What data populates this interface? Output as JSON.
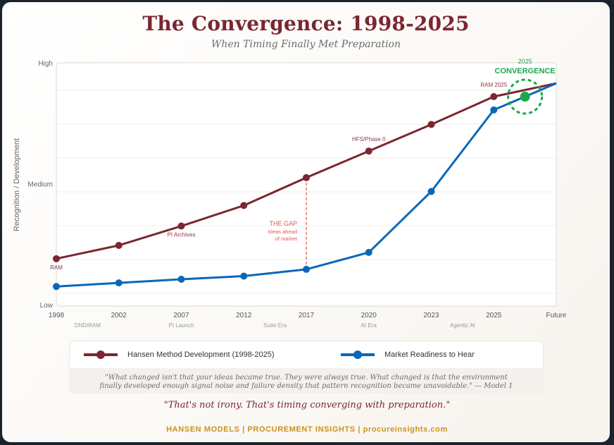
{
  "header": {
    "title": "The Convergence: 1998-2025",
    "subtitle": "When Timing Finally Met Preparation"
  },
  "colors": {
    "hansen": "#7b2630",
    "market": "#0a67b8",
    "convergence": "#1aa84b",
    "gap": "#e05a4e",
    "footer": "#c9921e"
  },
  "chart_data": {
    "type": "line",
    "title": "The Convergence: 1998-2025",
    "subtitle": "When Timing Finally Met Preparation",
    "xlabel": "",
    "ylabel": "Recognition / Development",
    "x": [
      "1998",
      "2002",
      "2007",
      "2012",
      "2017",
      "2020",
      "2023",
      "2025",
      "Future"
    ],
    "era_labels": [
      {
        "x_index": 0.5,
        "label": "DND/RAM"
      },
      {
        "x_index": 2,
        "label": "PI Launch"
      },
      {
        "x_index": 3.5,
        "label": "Suite Era"
      },
      {
        "x_index": 5,
        "label": "AI Era"
      },
      {
        "x_index": 6.5,
        "label": "Agentic AI"
      }
    ],
    "y_ticks": [
      {
        "value": 0,
        "label": "Low"
      },
      {
        "value": 50,
        "label": "Medium"
      },
      {
        "value": 100,
        "label": "High"
      }
    ],
    "ylim": [
      0,
      100
    ],
    "grid": true,
    "series": [
      {
        "name": "Hansen Method Development (1998-2025)",
        "color": "#7b2630",
        "values": [
          19,
          24.5,
          32.5,
          41,
          52.5,
          63.5,
          74.5,
          86,
          91.5
        ],
        "markers": [
          true,
          true,
          true,
          true,
          true,
          true,
          true,
          true,
          false
        ]
      },
      {
        "name": "Market Readiness to Hear",
        "color": "#0a67b8",
        "values": [
          7.5,
          9,
          10.5,
          11.8,
          14.6,
          21.6,
          46.8,
          80.5,
          91.5
        ],
        "markers": [
          true,
          true,
          true,
          true,
          true,
          true,
          true,
          true,
          false
        ]
      }
    ],
    "annotations": [
      {
        "series": 0,
        "x_index": 0,
        "text": "RAM",
        "position": "below"
      },
      {
        "series": 0,
        "x_index": 2,
        "text": "PI Archives",
        "position": "below"
      },
      {
        "series": 0,
        "x_index": 5,
        "text": "HFS/Phase 0",
        "position": "above"
      },
      {
        "series": 0,
        "x_index": 7,
        "text": "RAM 2025",
        "position": "above"
      }
    ],
    "gap": {
      "x_index": 4,
      "title": "THE GAP",
      "lines": [
        "Ideas ahead",
        "of market"
      ]
    },
    "convergence": {
      "x_index": 7.5,
      "value": 86,
      "year_label": "2025",
      "label": "CONVERGENCE"
    },
    "legend": "bottom"
  },
  "quote": {
    "line1": "\"What changed isn't that your ideas became true. They were always true. What changed is that the environment",
    "line2": "finally developed enough signal noise and failure density that pattern recognition became unavoidable.\" — Model 1"
  },
  "tagline": "\"That's not irony. That's timing converging with preparation.\"",
  "footer": "HANSEN MODELS | PROCUREMENT INSIGHTS | procureinsights.com"
}
